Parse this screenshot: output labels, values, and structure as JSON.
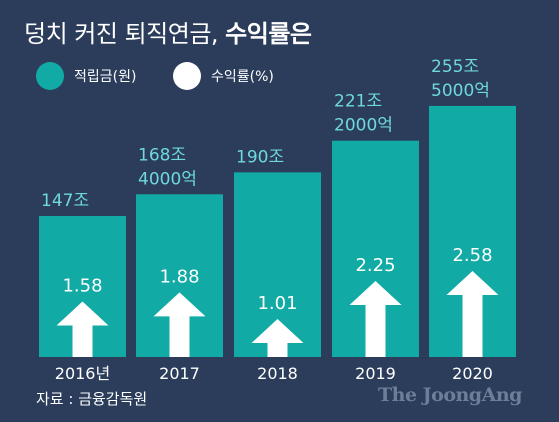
{
  "title": {
    "normal": "덩치 커진 퇴직연금,",
    "bold": "수익률은"
  },
  "legend": [
    {
      "label": "적립금(원)",
      "color": "#11aaa4"
    },
    {
      "label": "수익률(%)",
      "color": "#ffffff"
    }
  ],
  "chart_data": {
    "type": "bar",
    "title": "덩치 커진 퇴직연금, 수익률은",
    "categories": [
      "2016년",
      "2017",
      "2018",
      "2019",
      "2020"
    ],
    "series": [
      {
        "name": "적립금(원)",
        "values": [
          147,
          168.4,
          190,
          221.2,
          255.5
        ],
        "unit": "조",
        "labels": [
          [
            "147조"
          ],
          [
            "168조",
            "4000억"
          ],
          [
            "190조"
          ],
          [
            "221조",
            "2000억"
          ],
          [
            "255조",
            "5000억"
          ]
        ]
      },
      {
        "name": "수익률(%)",
        "values": [
          1.58,
          1.88,
          1.01,
          2.25,
          2.58
        ],
        "labels": [
          "1.58",
          "1.88",
          "1.01",
          "2.25",
          "2.58"
        ],
        "marker": "arrow"
      }
    ],
    "colors": {
      "bar": "#11aaa4",
      "arrow": "#ffffff",
      "bar_label": "#6fd8dc",
      "axis_label": "#ffffff"
    },
    "axis_labels_position": "bottom",
    "grid": false,
    "legend_position": "top-left"
  },
  "footer": {
    "source": "자료 : 금융감독원",
    "logo": "The JoongAng"
  }
}
